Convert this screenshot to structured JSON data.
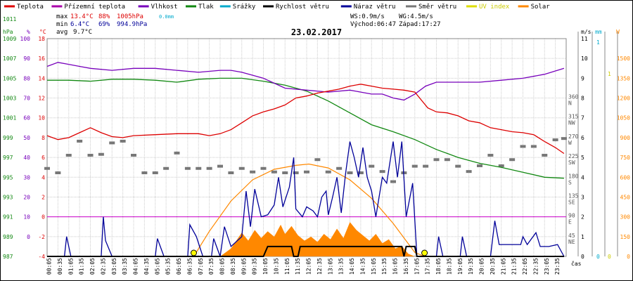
{
  "chart_data": {
    "type": "line",
    "title": "23.02.2017",
    "x_label": "čas",
    "legend": [
      {
        "name": "Teplota",
        "color": "#dd0000"
      },
      {
        "name": "Přízemní teplota",
        "color": "#aa00aa"
      },
      {
        "name": "Vlhkost",
        "color": "#7700bb"
      },
      {
        "name": "Tlak",
        "color": "#118811"
      },
      {
        "name": "Srážky",
        "color": "#00aacc"
      },
      {
        "name": "Rychlost větru",
        "color": "#000000"
      },
      {
        "name": "Náraz větru",
        "color": "#000099"
      },
      {
        "name": "Směr větru",
        "color": "#777777"
      },
      {
        "name": "UV index",
        "color": "#dddd00"
      },
      {
        "name": "Solar",
        "color": "#ff8800"
      }
    ],
    "stats": {
      "max_label": "max",
      "max_temp": "13.4°C",
      "max_hum": "88%",
      "max_press": "1005hPa",
      "max_rain": "0.0mm",
      "min_label": "min",
      "min_temp": "6.4°C",
      "min_hum": "69%",
      "min_press": "994.9hPa",
      "avg_label": "avg",
      "avg_temp": "9.7°C",
      "ws": "WS:0.9m/s",
      "wg": "WG:4.5m/s",
      "sunrise": "Východ:06:47",
      "sunset": "Západ:17:27"
    },
    "axes": {
      "hpa": {
        "unit": "hPa",
        "ticks": [
          "1011",
          "1009",
          "1007",
          "1005",
          "1003",
          "1001",
          "999",
          "997",
          "995",
          "993",
          "991",
          "989",
          "987"
        ]
      },
      "pct": {
        "unit": "%",
        "ticks": [
          "100",
          "90",
          "80",
          "70",
          "60",
          "50",
          "40",
          "30",
          "20",
          "10",
          "0"
        ]
      },
      "degc": {
        "unit": "°C",
        "ticks": [
          "18",
          "16",
          "14",
          "12",
          "10",
          "8",
          "6",
          "4",
          "2",
          "0",
          "-2",
          "-4"
        ]
      },
      "dir": {
        "unit": "m/s",
        "ticks": [
          {
            "n": "360",
            "l": "N"
          },
          {
            "n": "315",
            "l": "NW"
          },
          {
            "n": "270",
            "l": "W"
          },
          {
            "n": "225",
            "l": "SW"
          },
          {
            "n": "180",
            "l": "S"
          },
          {
            "n": "135",
            "l": "SE"
          },
          {
            "n": "90",
            "l": "E"
          },
          {
            "n": "45",
            "l": "NE"
          }
        ]
      },
      "ms": {
        "ticks": [
          "11",
          "10",
          "9",
          "8",
          "7",
          "6",
          "5",
          "4",
          "3",
          "2",
          "1",
          "0"
        ]
      },
      "mm": {
        "unit": "mm",
        "ticks": [
          "1",
          "0"
        ]
      },
      "uv": {
        "unit": "W",
        "ticks": [
          "1",
          "0"
        ]
      },
      "solar": {
        "ticks": [
          "1500",
          "1350",
          "1200",
          "1050",
          "900",
          "750",
          "600",
          "450",
          "300",
          "150",
          "0"
        ]
      }
    },
    "x_ticks": [
      "00:05",
      "00:35",
      "01:05",
      "01:35",
      "02:05",
      "02:35",
      "03:05",
      "03:35",
      "04:05",
      "04:35",
      "05:05",
      "05:35",
      "06:05",
      "06:35",
      "07:05",
      "07:35",
      "08:05",
      "08:35",
      "09:05",
      "09:35",
      "10:05",
      "10:35",
      "11:05",
      "11:35",
      "12:05",
      "12:35",
      "13:05",
      "13:35",
      "14:05",
      "14:35",
      "15:05",
      "15:35",
      "16:05",
      "16:35",
      "17:05",
      "17:35",
      "18:05",
      "18:35",
      "19:05",
      "19:35",
      "20:05",
      "20:35",
      "21:05",
      "21:35",
      "22:05",
      "22:35",
      "23:05",
      "23:35"
    ],
    "series": {
      "temperature_c": [
        [
          0,
          8.2
        ],
        [
          0.5,
          7.8
        ],
        [
          1,
          8.0
        ],
        [
          1.5,
          8.5
        ],
        [
          2,
          9.0
        ],
        [
          2.5,
          8.5
        ],
        [
          3,
          8.1
        ],
        [
          3.5,
          8.0
        ],
        [
          4,
          8.2
        ],
        [
          5,
          8.3
        ],
        [
          6,
          8.4
        ],
        [
          7,
          8.4
        ],
        [
          7.5,
          8.2
        ],
        [
          8,
          8.4
        ],
        [
          8.5,
          8.8
        ],
        [
          9,
          9.5
        ],
        [
          9.5,
          10.2
        ],
        [
          10,
          10.6
        ],
        [
          10.5,
          10.9
        ],
        [
          11,
          11.3
        ],
        [
          11.5,
          12.0
        ],
        [
          12,
          12.2
        ],
        [
          12.5,
          12.5
        ],
        [
          13,
          12.7
        ],
        [
          13.5,
          12.9
        ],
        [
          14,
          13.2
        ],
        [
          14.5,
          13.4
        ],
        [
          15,
          13.2
        ],
        [
          15.5,
          13.0
        ],
        [
          16,
          12.9
        ],
        [
          16.5,
          12.8
        ],
        [
          17,
          12.6
        ],
        [
          17.3,
          11.8
        ],
        [
          17.6,
          11.0
        ],
        [
          18,
          10.6
        ],
        [
          18.5,
          10.5
        ],
        [
          19,
          10.2
        ],
        [
          19.5,
          9.7
        ],
        [
          20,
          9.5
        ],
        [
          20.5,
          9.0
        ],
        [
          21,
          8.8
        ],
        [
          21.5,
          8.6
        ],
        [
          22,
          8.5
        ],
        [
          22.5,
          8.3
        ],
        [
          23,
          7.6
        ],
        [
          23.5,
          7.0
        ],
        [
          23.9,
          6.4
        ]
      ],
      "humidity_pct": [
        [
          0,
          86
        ],
        [
          0.5,
          88
        ],
        [
          1,
          87
        ],
        [
          1.5,
          86
        ],
        [
          2,
          85
        ],
        [
          3,
          84
        ],
        [
          4,
          85
        ],
        [
          5,
          85
        ],
        [
          6,
          84
        ],
        [
          7,
          83
        ],
        [
          8,
          84
        ],
        [
          8.5,
          84
        ],
        [
          9,
          83
        ],
        [
          10,
          80
        ],
        [
          11,
          75
        ],
        [
          12,
          74
        ],
        [
          13,
          73
        ],
        [
          14,
          74
        ],
        [
          14.5,
          73
        ],
        [
          15,
          72
        ],
        [
          15.5,
          72
        ],
        [
          16,
          70
        ],
        [
          16.5,
          69
        ],
        [
          17,
          72
        ],
        [
          17.5,
          76
        ],
        [
          18,
          78
        ],
        [
          19,
          78
        ],
        [
          20,
          78
        ],
        [
          21,
          79
        ],
        [
          22,
          80
        ],
        [
          23,
          82
        ],
        [
          23.9,
          85
        ]
      ],
      "pressure_hpa": [
        [
          0,
          1004.8
        ],
        [
          1,
          1004.8
        ],
        [
          2,
          1004.7
        ],
        [
          3,
          1004.9
        ],
        [
          4,
          1004.9
        ],
        [
          5,
          1004.8
        ],
        [
          6,
          1004.6
        ],
        [
          7,
          1004.9
        ],
        [
          8,
          1005.0
        ],
        [
          9,
          1005.0
        ],
        [
          10,
          1004.7
        ],
        [
          11,
          1004.3
        ],
        [
          12,
          1003.7
        ],
        [
          13,
          1002.7
        ],
        [
          14,
          1001.5
        ],
        [
          15,
          1000.3
        ],
        [
          16,
          999.6
        ],
        [
          17,
          998.8
        ],
        [
          18,
          997.8
        ],
        [
          19,
          997.0
        ],
        [
          20,
          996.4
        ],
        [
          21,
          996.0
        ],
        [
          22,
          995.5
        ],
        [
          23,
          995.0
        ],
        [
          23.9,
          994.9
        ]
      ],
      "wind_gust_ms": [
        [
          0,
          0
        ],
        [
          0.8,
          0
        ],
        [
          0.9,
          1.0
        ],
        [
          1.1,
          0
        ],
        [
          2.5,
          0
        ],
        [
          2.6,
          2.0
        ],
        [
          2.7,
          0.8
        ],
        [
          3,
          0
        ],
        [
          5,
          0
        ],
        [
          5.1,
          0.9
        ],
        [
          5.4,
          0
        ],
        [
          6.5,
          0
        ],
        [
          6.6,
          1.6
        ],
        [
          6.9,
          1.0
        ],
        [
          7.2,
          0
        ],
        [
          7.6,
          0
        ],
        [
          7.7,
          0.9
        ],
        [
          8,
          0
        ],
        [
          8.2,
          1.5
        ],
        [
          8.5,
          0.5
        ],
        [
          9,
          1.0
        ],
        [
          9.2,
          3.3
        ],
        [
          9.4,
          1.5
        ],
        [
          9.6,
          3.4
        ],
        [
          9.9,
          2.0
        ],
        [
          10.2,
          2.1
        ],
        [
          10.5,
          2.6
        ],
        [
          10.7,
          4.0
        ],
        [
          10.9,
          2.5
        ],
        [
          11.2,
          3.5
        ],
        [
          11.4,
          5.0
        ],
        [
          11.5,
          2.4
        ],
        [
          11.8,
          2.0
        ],
        [
          12.0,
          2.5
        ],
        [
          12.3,
          2.3
        ],
        [
          12.5,
          2.0
        ],
        [
          12.7,
          3.0
        ],
        [
          12.9,
          3.3
        ],
        [
          13.0,
          2.1
        ],
        [
          13.2,
          3.0
        ],
        [
          13.4,
          4.0
        ],
        [
          13.6,
          2.2
        ],
        [
          13.8,
          4.2
        ],
        [
          14.0,
          5.8
        ],
        [
          14.2,
          5.0
        ],
        [
          14.4,
          4.0
        ],
        [
          14.6,
          5.5
        ],
        [
          14.8,
          4.0
        ],
        [
          15.0,
          3.3
        ],
        [
          15.2,
          2.0
        ],
        [
          15.5,
          4.0
        ],
        [
          15.7,
          3.7
        ],
        [
          16.0,
          5.8
        ],
        [
          16.2,
          4.0
        ],
        [
          16.4,
          5.8
        ],
        [
          16.6,
          2.0
        ],
        [
          16.9,
          3.7
        ],
        [
          17.1,
          0
        ],
        [
          18,
          0
        ],
        [
          18.1,
          1.0
        ],
        [
          18.3,
          0
        ],
        [
          19.1,
          0
        ],
        [
          19.2,
          1.0
        ],
        [
          19.4,
          0
        ],
        [
          20.5,
          0
        ],
        [
          20.7,
          1.8
        ],
        [
          20.9,
          0.6
        ],
        [
          21.9,
          0.6
        ],
        [
          22.0,
          1.0
        ],
        [
          22.2,
          0.6
        ],
        [
          22.6,
          1.2
        ],
        [
          22.8,
          0.5
        ],
        [
          23.2,
          0.5
        ],
        [
          23.6,
          0.6
        ],
        [
          23.9,
          0
        ]
      ],
      "wind_speed_ms": [
        [
          0,
          0
        ],
        [
          10,
          0
        ],
        [
          10.2,
          0.5
        ],
        [
          11.3,
          0.5
        ],
        [
          11.4,
          0
        ],
        [
          11.6,
          0
        ],
        [
          11.7,
          0.5
        ],
        [
          16.4,
          0.5
        ],
        [
          16.5,
          0
        ],
        [
          16.6,
          0.5
        ],
        [
          17,
          0.5
        ],
        [
          17.1,
          0
        ],
        [
          23.9,
          0
        ]
      ],
      "solar_wm2": [
        [
          6.5,
          0
        ],
        [
          8.0,
          0
        ],
        [
          8.5,
          60
        ],
        [
          9,
          180
        ],
        [
          9.3,
          120
        ],
        [
          9.6,
          200
        ],
        [
          9.9,
          140
        ],
        [
          10.2,
          190
        ],
        [
          10.5,
          150
        ],
        [
          10.8,
          240
        ],
        [
          11.0,
          170
        ],
        [
          11.3,
          230
        ],
        [
          11.6,
          160
        ],
        [
          11.9,
          120
        ],
        [
          12.2,
          150
        ],
        [
          12.5,
          110
        ],
        [
          12.8,
          170
        ],
        [
          13.1,
          130
        ],
        [
          13.4,
          210
        ],
        [
          13.7,
          140
        ],
        [
          14.0,
          260
        ],
        [
          14.3,
          200
        ],
        [
          14.6,
          160
        ],
        [
          14.9,
          120
        ],
        [
          15.2,
          170
        ],
        [
          15.5,
          100
        ],
        [
          15.8,
          130
        ],
        [
          16.1,
          60
        ],
        [
          16.4,
          80
        ],
        [
          16.7,
          20
        ],
        [
          17.0,
          0
        ]
      ],
      "theoretical_solar_wm2": [
        [
          6.78,
          0
        ],
        [
          7.5,
          190
        ],
        [
          8.5,
          420
        ],
        [
          9.5,
          580
        ],
        [
          10.5,
          660
        ],
        [
          11.5,
          690
        ],
        [
          12.1,
          700
        ],
        [
          13.0,
          670
        ],
        [
          14.0,
          580
        ],
        [
          15.0,
          440
        ],
        [
          16.0,
          250
        ],
        [
          17.0,
          30
        ],
        [
          17.45,
          0
        ]
      ],
      "wind_direction_deg": [
        [
          0,
          200
        ],
        [
          0.5,
          190
        ],
        [
          1,
          230
        ],
        [
          1.5,
          262
        ],
        [
          2,
          230
        ],
        [
          2.5,
          232
        ],
        [
          3,
          258
        ],
        [
          3.5,
          262
        ],
        [
          4,
          230
        ],
        [
          4.5,
          190
        ],
        [
          5,
          190
        ],
        [
          5.5,
          200
        ],
        [
          6,
          235
        ],
        [
          6.5,
          200
        ],
        [
          7,
          200
        ],
        [
          7.5,
          200
        ],
        [
          8,
          205
        ],
        [
          8.5,
          190
        ],
        [
          9,
          200
        ],
        [
          9.5,
          192
        ],
        [
          10,
          200
        ],
        [
          10.5,
          192
        ],
        [
          11,
          190
        ],
        [
          11.5,
          190
        ],
        [
          12,
          192
        ],
        [
          12.5,
          220
        ],
        [
          13,
          192
        ],
        [
          13.5,
          200
        ],
        [
          14,
          190
        ],
        [
          14.5,
          190
        ],
        [
          15,
          205
        ],
        [
          15.5,
          193
        ],
        [
          16,
          170
        ],
        [
          16.5,
          190
        ],
        [
          17,
          205
        ],
        [
          17.5,
          205
        ],
        [
          18,
          220
        ],
        [
          18.5,
          220
        ],
        [
          19,
          205
        ],
        [
          19.5,
          193
        ],
        [
          20,
          206
        ],
        [
          20.5,
          230
        ],
        [
          21,
          206
        ],
        [
          21.5,
          220
        ],
        [
          22,
          250
        ],
        [
          22.5,
          250
        ],
        [
          23,
          230
        ],
        [
          23.5,
          265
        ],
        [
          23.9,
          268
        ]
      ],
      "sun_markers_hours": [
        6.78,
        17.45
      ]
    },
    "reference_line_c": 0
  }
}
